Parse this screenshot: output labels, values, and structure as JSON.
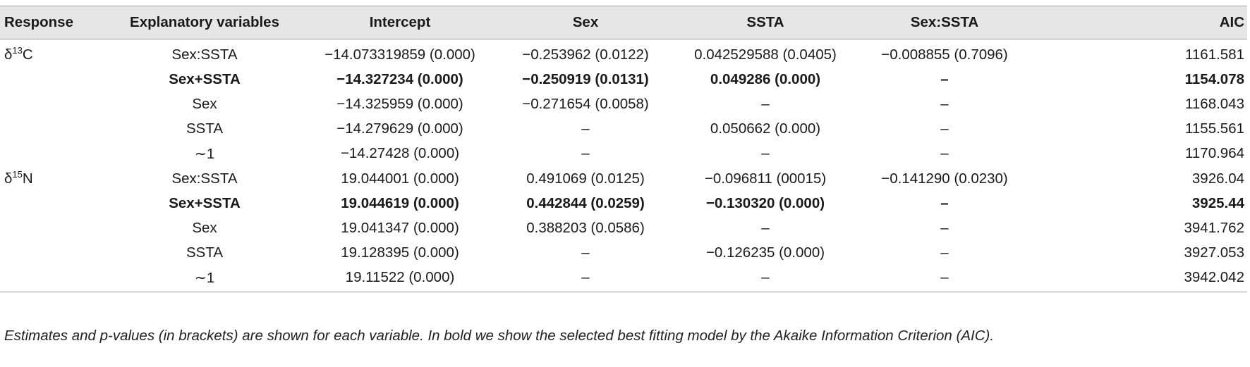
{
  "table": {
    "headers": [
      "Response",
      "Explanatory variables",
      "Intercept",
      "Sex",
      "SSTA",
      "Sex:SSTA",
      "AIC"
    ],
    "rows": [
      {
        "response_base": "δ",
        "response_sup": "13",
        "response_el": "C",
        "bold": false,
        "cells": [
          "Sex:SSTA",
          "−14.073319859 (0.000)",
          "−0.253962 (0.0122)",
          "0.042529588 (0.0405)",
          "−0.008855 (0.7096)",
          "1161.581"
        ]
      },
      {
        "response_base": "",
        "response_sup": "",
        "response_el": "",
        "bold": true,
        "cells": [
          "Sex+SSTA",
          "−14.327234 (0.000)",
          "−0.250919 (0.0131)",
          "0.049286 (0.000)",
          "–",
          "1154.078"
        ]
      },
      {
        "response_base": "",
        "response_sup": "",
        "response_el": "",
        "bold": false,
        "cells": [
          "Sex",
          "−14.325959 (0.000)",
          "−0.271654 (0.0058)",
          "–",
          "–",
          "1168.043"
        ]
      },
      {
        "response_base": "",
        "response_sup": "",
        "response_el": "",
        "bold": false,
        "cells": [
          "SSTA",
          "−14.279629 (0.000)",
          "–",
          "0.050662 (0.000)",
          "–",
          "1155.561"
        ]
      },
      {
        "response_base": "",
        "response_sup": "",
        "response_el": "",
        "bold": false,
        "cells": [
          "∼1",
          "−14.27428 (0.000)",
          "–",
          "–",
          "–",
          "1170.964"
        ]
      },
      {
        "response_base": "δ",
        "response_sup": "15",
        "response_el": "N",
        "bold": false,
        "cells": [
          "Sex:SSTA",
          "19.044001 (0.000)",
          "0.491069 (0.0125)",
          "−0.096811 (00015)",
          "−0.141290 (0.0230)",
          "3926.04"
        ]
      },
      {
        "response_base": "",
        "response_sup": "",
        "response_el": "",
        "bold": true,
        "cells": [
          "Sex+SSTA",
          "19.044619 (0.000)",
          "0.442844 (0.0259)",
          "−0.130320 (0.000)",
          "–",
          "3925.44"
        ]
      },
      {
        "response_base": "",
        "response_sup": "",
        "response_el": "",
        "bold": false,
        "cells": [
          "Sex",
          "19.041347 (0.000)",
          "0.388203 (0.0586)",
          "–",
          "–",
          "3941.762"
        ]
      },
      {
        "response_base": "",
        "response_sup": "",
        "response_el": "",
        "bold": false,
        "cells": [
          "SSTA",
          "19.128395 (0.000)",
          "–",
          "−0.126235 (0.000)",
          "–",
          "3927.053"
        ]
      },
      {
        "response_base": "",
        "response_sup": "",
        "response_el": "",
        "bold": false,
        "cells": [
          "∼1",
          "19.11522 (0.000)",
          "–",
          "–",
          "–",
          "3942.042"
        ]
      }
    ]
  },
  "footnote": "Estimates and p-values (in brackets) are shown for each variable. In bold we show the selected best fitting model by the Akaike Information Criterion (AIC)."
}
